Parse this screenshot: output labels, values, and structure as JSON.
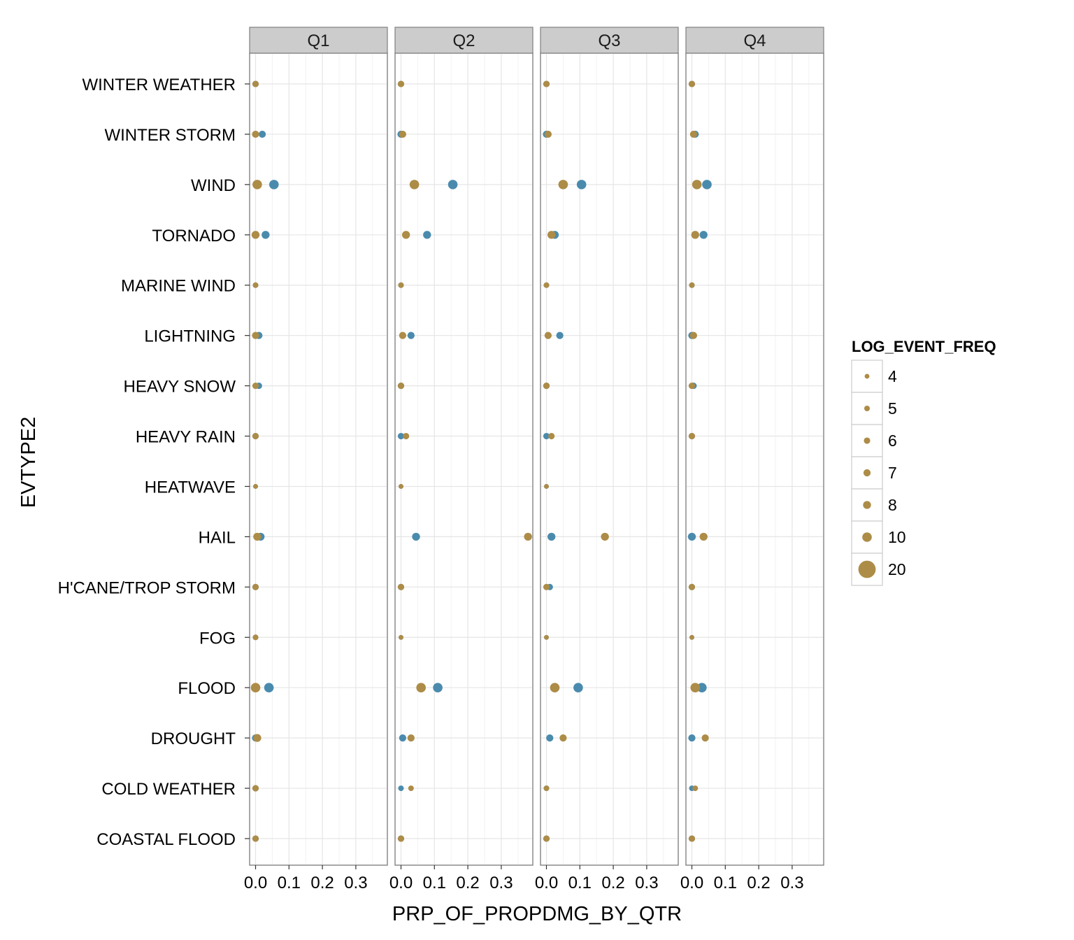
{
  "chart_data": {
    "type": "scatter",
    "facet_variable": "quarter",
    "panels": [
      "Q1",
      "Q2",
      "Q3",
      "Q4"
    ],
    "xlabel": "PRP_OF_PROPDMG_BY_QTR",
    "ylabel": "EVTYPE2",
    "x_ticks": [
      "0.0",
      "0.1",
      "0.2",
      "0.3"
    ],
    "x_tick_values": [
      0,
      0.1,
      0.2,
      0.3
    ],
    "xlim": [
      -0.02,
      0.39
    ],
    "categories": [
      "COASTAL FLOOD",
      "COLD WEATHER",
      "DROUGHT",
      "FLOOD",
      "FOG",
      "H'CANE/TROP STORM",
      "HAIL",
      "HEATWAVE",
      "HEAVY RAIN",
      "HEAVY SNOW",
      "LIGHTNING",
      "MARINE WIND",
      "TORNADO",
      "WIND",
      "WINTER STORM",
      "WINTER WEATHER"
    ],
    "colors": {
      "blue": "#4a8bad",
      "gold": "#ad8c47"
    },
    "grid": true,
    "legend": {
      "title": "LOG_EVENT_FREQ",
      "position": "right",
      "entries": [
        "4",
        "5",
        "6",
        "7",
        "8",
        "10",
        "20"
      ],
      "size_values": [
        4,
        5,
        6,
        7,
        8,
        10,
        20
      ]
    },
    "series": [
      {
        "color": "#4a8bad",
        "points": {
          "Q1": {
            "COASTAL FLOOD": [
              0.0,
              6
            ],
            "COLD WEATHER": [
              0.0,
              6
            ],
            "DROUGHT": [
              0.0,
              7
            ],
            "FLOOD": [
              0.04,
              10
            ],
            "FOG": [
              0.0,
              5
            ],
            "H'CANE/TROP STORM": [
              0.0,
              6
            ],
            "HAIL": [
              0.015,
              8
            ],
            "HEATWAVE": [
              0.0,
              4
            ],
            "HEAVY RAIN": [
              0.0,
              6
            ],
            "HEAVY SNOW": [
              0.01,
              6
            ],
            "LIGHTNING": [
              0.01,
              7
            ],
            "MARINE WIND": [
              0.0,
              5
            ],
            "TORNADO": [
              0.03,
              8
            ],
            "WIND": [
              0.055,
              10
            ],
            "WINTER STORM": [
              0.02,
              7
            ],
            "WINTER WEATHER": [
              0.0,
              6
            ]
          },
          "Q2": {
            "COASTAL FLOOD": [
              0.0,
              6
            ],
            "COLD WEATHER": [
              0.0,
              5
            ],
            "DROUGHT": [
              0.005,
              7
            ],
            "FLOOD": [
              0.11,
              10
            ],
            "FOG": [
              0.0,
              4
            ],
            "H'CANE/TROP STORM": [
              0.0,
              6
            ],
            "HAIL": [
              0.045,
              8
            ],
            "HEATWAVE": [
              0.0,
              4
            ],
            "HEAVY RAIN": [
              0.0,
              6
            ],
            "HEAVY SNOW": [
              0.0,
              6
            ],
            "LIGHTNING": [
              0.03,
              7
            ],
            "MARINE WIND": [
              0.0,
              5
            ],
            "TORNADO": [
              0.078,
              8
            ],
            "WIND": [
              0.155,
              10
            ],
            "WINTER STORM": [
              0.0,
              7
            ],
            "WINTER WEATHER": [
              0.0,
              6
            ]
          },
          "Q3": {
            "COASTAL FLOOD": [
              0.0,
              6
            ],
            "COLD WEATHER": [
              0.0,
              5
            ],
            "DROUGHT": [
              0.01,
              7
            ],
            "FLOOD": [
              0.095,
              10
            ],
            "FOG": [
              0.0,
              4
            ],
            "H'CANE/TROP STORM": [
              0.01,
              6
            ],
            "HAIL": [
              0.015,
              8
            ],
            "HEATWAVE": [
              0.0,
              4
            ],
            "HEAVY RAIN": [
              0.0,
              6
            ],
            "HEAVY SNOW": [
              0.0,
              6
            ],
            "LIGHTNING": [
              0.04,
              7
            ],
            "MARINE WIND": [
              0.0,
              5
            ],
            "TORNADO": [
              0.025,
              8
            ],
            "WIND": [
              0.105,
              10
            ],
            "WINTER STORM": [
              0.0,
              7
            ],
            "WINTER WEATHER": [
              0.0,
              6
            ]
          },
          "Q4": {
            "COASTAL FLOOD": [
              0.0,
              6
            ],
            "COLD WEATHER": [
              0.0,
              5
            ],
            "DROUGHT": [
              0.0,
              7
            ],
            "FLOOD": [
              0.03,
              10
            ],
            "FOG": [
              0.0,
              4
            ],
            "H'CANE/TROP STORM": [
              0.0,
              6
            ],
            "HAIL": [
              0.0,
              8
            ],
            "HEATWAVE": null,
            "HEAVY RAIN": [
              0.0,
              6
            ],
            "HEAVY SNOW": [
              0.005,
              6
            ],
            "LIGHTNING": [
              0.0,
              7
            ],
            "MARINE WIND": [
              0.0,
              5
            ],
            "TORNADO": [
              0.035,
              8
            ],
            "WIND": [
              0.045,
              10
            ],
            "WINTER STORM": [
              0.01,
              7
            ],
            "WINTER WEATHER": [
              0.0,
              6
            ]
          }
        }
      },
      {
        "color": "#ad8c47",
        "points": {
          "Q1": {
            "COASTAL FLOOD": [
              0.0,
              6
            ],
            "COLD WEATHER": [
              0.0,
              6
            ],
            "DROUGHT": [
              0.005,
              8
            ],
            "FLOOD": [
              0.0,
              10
            ],
            "FOG": [
              0.0,
              5
            ],
            "H'CANE/TROP STORM": [
              0.0,
              6
            ],
            "HAIL": [
              0.005,
              8
            ],
            "HEATWAVE": [
              0.0,
              4
            ],
            "HEAVY RAIN": [
              0.0,
              6
            ],
            "HEAVY SNOW": [
              0.0,
              6
            ],
            "LIGHTNING": [
              0.0,
              7
            ],
            "MARINE WIND": [
              0.0,
              5
            ],
            "TORNADO": [
              0.0,
              8
            ],
            "WIND": [
              0.005,
              10
            ],
            "WINTER STORM": [
              0.0,
              7
            ],
            "WINTER WEATHER": [
              0.0,
              6
            ]
          },
          "Q2": {
            "COASTAL FLOOD": [
              0.0,
              6
            ],
            "COLD WEATHER": [
              0.03,
              5
            ],
            "DROUGHT": [
              0.03,
              7
            ],
            "FLOOD": [
              0.06,
              10
            ],
            "FOG": [
              0.0,
              4
            ],
            "H'CANE/TROP STORM": [
              0.0,
              6
            ],
            "HAIL": [
              0.38,
              8
            ],
            "HEATWAVE": [
              0.0,
              4
            ],
            "HEAVY RAIN": [
              0.015,
              6
            ],
            "HEAVY SNOW": [
              0.0,
              6
            ],
            "LIGHTNING": [
              0.005,
              7
            ],
            "MARINE WIND": [
              0.0,
              5
            ],
            "TORNADO": [
              0.015,
              8
            ],
            "WIND": [
              0.04,
              10
            ],
            "WINTER STORM": [
              0.005,
              7
            ],
            "WINTER WEATHER": [
              0.0,
              6
            ]
          },
          "Q3": {
            "COASTAL FLOOD": [
              0.0,
              6
            ],
            "COLD WEATHER": [
              0.0,
              5
            ],
            "DROUGHT": [
              0.05,
              7
            ],
            "FLOOD": [
              0.025,
              10
            ],
            "FOG": [
              0.0,
              4
            ],
            "H'CANE/TROP STORM": [
              0.0,
              6
            ],
            "HAIL": [
              0.175,
              8
            ],
            "HEATWAVE": [
              0.0,
              4
            ],
            "HEAVY RAIN": [
              0.015,
              6
            ],
            "HEAVY SNOW": [
              0.0,
              6
            ],
            "LIGHTNING": [
              0.005,
              7
            ],
            "MARINE WIND": [
              0.0,
              5
            ],
            "TORNADO": [
              0.015,
              8
            ],
            "WIND": [
              0.05,
              10
            ],
            "WINTER STORM": [
              0.005,
              7
            ],
            "WINTER WEATHER": [
              0.0,
              6
            ]
          },
          "Q4": {
            "COASTAL FLOOD": [
              0.0,
              6
            ],
            "COLD WEATHER": [
              0.01,
              5
            ],
            "DROUGHT": [
              0.04,
              7
            ],
            "FLOOD": [
              0.01,
              10
            ],
            "FOG": [
              0.0,
              4
            ],
            "H'CANE/TROP STORM": [
              0.0,
              6
            ],
            "HAIL": [
              0.035,
              8
            ],
            "HEATWAVE": null,
            "HEAVY RAIN": [
              0.0,
              6
            ],
            "HEAVY SNOW": [
              0.0,
              6
            ],
            "LIGHTNING": [
              0.005,
              7
            ],
            "MARINE WIND": [
              0.0,
              5
            ],
            "TORNADO": [
              0.01,
              8
            ],
            "WIND": [
              0.015,
              10
            ],
            "WINTER STORM": [
              0.005,
              7
            ],
            "WINTER WEATHER": [
              0.0,
              6
            ]
          }
        }
      }
    ]
  }
}
